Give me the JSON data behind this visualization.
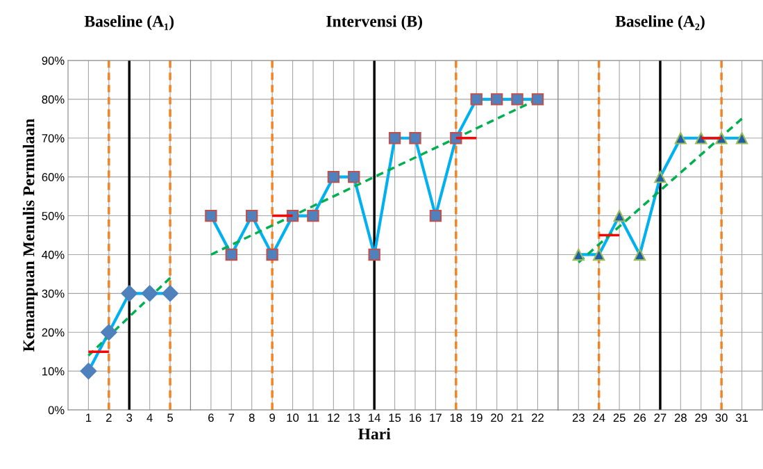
{
  "chart_data": [
    {
      "type": "line",
      "title": "Baseline (A₁)",
      "ylabel": "Kemampuan Menulis Permulaan",
      "categories": [
        "1",
        "2",
        "3",
        "4",
        "5"
      ],
      "series": [
        {
          "color": "#00b0f0",
          "marker": "diamond",
          "values": [
            10,
            20,
            30,
            30,
            30
          ]
        },
        {
          "type": "line",
          "x": [
            "1",
            "5"
          ],
          "values": [
            14,
            34
          ],
          "color": "#00b050",
          "line_style": "dashed"
        },
        {
          "type": "line",
          "x": [
            "1",
            "2"
          ],
          "values": [
            15,
            15
          ],
          "color": "#ff0000"
        },
        {
          "type": "line",
          "x": [
            "2",
            "2"
          ],
          "values": [
            0,
            90
          ],
          "color": "#f58220",
          "line_style": "dashed"
        },
        {
          "type": "line",
          "x": [
            "5",
            "5"
          ],
          "values": [
            0,
            90
          ],
          "color": "#f58220",
          "line_style": "dashed"
        },
        {
          "type": "line",
          "x": [
            "3",
            "3"
          ],
          "values": [
            0,
            90
          ],
          "color": "#000000"
        }
      ],
      "ylim": [
        0,
        90
      ],
      "yticks": [
        {
          "value": 0,
          "label": "0%"
        },
        {
          "value": 10,
          "label": "10%"
        },
        {
          "value": 20,
          "label": "20%"
        },
        {
          "value": 30,
          "label": "30%"
        },
        {
          "value": 40,
          "label": "40%"
        },
        {
          "value": 50,
          "label": "50%"
        },
        {
          "value": 60,
          "label": "60%"
        },
        {
          "value": 70,
          "label": "70%"
        },
        {
          "value": 80,
          "label": "80%"
        },
        {
          "value": 90,
          "label": "90%"
        }
      ],
      "grid": true
    },
    {
      "type": "line",
      "title": "Intervensi (B)",
      "xlabel": "Hari",
      "categories": [
        "6",
        "7",
        "8",
        "9",
        "10",
        "11",
        "12",
        "13",
        "14",
        "15",
        "16",
        "17",
        "18",
        "19",
        "20",
        "21",
        "22"
      ],
      "series": [
        {
          "color": "#00b0f0",
          "marker": "square",
          "values": [
            50,
            40,
            50,
            40,
            50,
            50,
            60,
            60,
            40,
            70,
            70,
            50,
            70,
            80,
            80,
            80,
            80
          ]
        },
        {
          "type": "line",
          "x": [
            "6",
            "22"
          ],
          "values": [
            40,
            80
          ],
          "color": "#00b050",
          "line_style": "dashed"
        },
        {
          "type": "line",
          "x": [
            "9",
            "10"
          ],
          "values": [
            50,
            50
          ],
          "color": "#ff0000"
        },
        {
          "type": "line",
          "x": [
            "18",
            "19"
          ],
          "values": [
            70,
            70
          ],
          "color": "#ff0000"
        },
        {
          "type": "line",
          "x": [
            "9",
            "9"
          ],
          "values": [
            0,
            90
          ],
          "color": "#f58220",
          "line_style": "dashed"
        },
        {
          "type": "line",
          "x": [
            "18",
            "18"
          ],
          "values": [
            0,
            90
          ],
          "color": "#f58220",
          "line_style": "dashed"
        },
        {
          "type": "line",
          "x": [
            "14",
            "14"
          ],
          "values": [
            0,
            90
          ],
          "color": "#000000"
        }
      ],
      "ylim": [
        0,
        90
      ],
      "yticks": [
        0,
        10,
        20,
        30,
        40,
        50,
        60,
        70,
        80,
        90
      ],
      "tick_labels": "x",
      "grid": true
    },
    {
      "type": "line",
      "title": "Baseline (A₂)",
      "categories": [
        "23",
        "24",
        "25",
        "26",
        "27",
        "28",
        "29",
        "30",
        "31"
      ],
      "series": [
        {
          "color": "#00b0f0",
          "marker": "triangle",
          "values": [
            40,
            40,
            50,
            40,
            60,
            70,
            70,
            70,
            70
          ]
        },
        {
          "type": "line",
          "x": [
            "23",
            "31"
          ],
          "values": [
            38,
            75
          ],
          "color": "#00b050",
          "line_style": "dashed"
        },
        {
          "type": "line",
          "x": [
            "24",
            "25"
          ],
          "values": [
            45,
            45
          ],
          "color": "#ff0000"
        },
        {
          "type": "line",
          "x": [
            "29",
            "30"
          ],
          "values": [
            70,
            70
          ],
          "color": "#ff0000"
        },
        {
          "type": "line",
          "x": [
            "24",
            "24"
          ],
          "values": [
            0,
            90
          ],
          "color": "#f58220",
          "line_style": "dashed"
        },
        {
          "type": "line",
          "x": [
            "30",
            "30"
          ],
          "values": [
            0,
            90
          ],
          "color": "#f58220",
          "line_style": "dashed"
        },
        {
          "type": "line",
          "x": [
            "27",
            "27"
          ],
          "values": [
            0,
            90
          ],
          "color": "#000000"
        }
      ],
      "ylim": [
        0,
        90
      ],
      "yticks": [
        0,
        10,
        20,
        30,
        40,
        50,
        60,
        70,
        80,
        90
      ],
      "tick_labels": "x",
      "grid": true
    }
  ]
}
